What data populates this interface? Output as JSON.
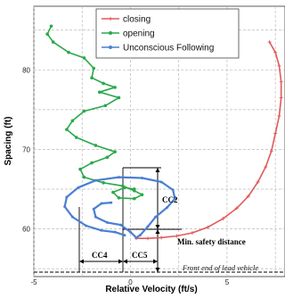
{
  "chart_data": {
    "type": "line",
    "xlabel": "Relative Velocity (ft/s)",
    "ylabel": "Spacing (ft)",
    "xlim": [
      -5,
      8
    ],
    "ylim": [
      54,
      88
    ],
    "x_ticks": [
      "-5",
      "0",
      "5"
    ],
    "y_ticks": [
      "60",
      "70",
      "80"
    ],
    "grid": "dashed",
    "legend_position": "top-right",
    "series": [
      {
        "name": "closing",
        "color": "#e05a5a",
        "marker": "plus",
        "points": [
          [
            7.2,
            83.5
          ],
          [
            7.5,
            82.2
          ],
          [
            7.7,
            80.5
          ],
          [
            7.8,
            78.5
          ],
          [
            7.8,
            76.5
          ],
          [
            7.7,
            74.2
          ],
          [
            7.5,
            72.0
          ],
          [
            7.3,
            69.8
          ],
          [
            7.0,
            67.8
          ],
          [
            6.6,
            65.9
          ],
          [
            6.1,
            64.1
          ],
          [
            5.5,
            62.6
          ],
          [
            4.8,
            61.3
          ],
          [
            4.0,
            60.2
          ],
          [
            3.2,
            59.5
          ],
          [
            2.4,
            59.1
          ],
          [
            1.6,
            58.9
          ],
          [
            0.9,
            58.8
          ],
          [
            0.3,
            58.8
          ]
        ]
      },
      {
        "name": "opening",
        "color": "#2aa84a",
        "marker": "circle",
        "points": [
          [
            -4.1,
            85.5
          ],
          [
            -4.3,
            84.5
          ],
          [
            -4.0,
            83.5
          ],
          [
            -3.2,
            82.2
          ],
          [
            -2.4,
            81.5
          ],
          [
            -1.9,
            80.2
          ],
          [
            -2.0,
            79.0
          ],
          [
            -1.4,
            78.3
          ],
          [
            -0.8,
            77.8
          ],
          [
            -1.6,
            77.2
          ],
          [
            -0.6,
            76.5
          ],
          [
            -1.3,
            75.5
          ],
          [
            -2.4,
            74.8
          ],
          [
            -3.0,
            73.6
          ],
          [
            -3.3,
            72.5
          ],
          [
            -2.8,
            71.5
          ],
          [
            -1.8,
            70.5
          ],
          [
            -0.8,
            69.7
          ],
          [
            -1.2,
            69.0
          ],
          [
            -2.0,
            68.3
          ],
          [
            -2.6,
            67.5
          ],
          [
            -2.4,
            66.5
          ],
          [
            -1.4,
            65.8
          ],
          [
            -0.4,
            65.4
          ],
          [
            0.2,
            64.8
          ],
          [
            0.6,
            64.3
          ],
          [
            0.2,
            63.8
          ],
          [
            -0.6,
            63.9
          ],
          [
            -0.9,
            64.6
          ],
          [
            -0.3,
            65.2
          ],
          [
            0.2,
            65.0
          ]
        ]
      },
      {
        "name": "Unconscious Following",
        "color": "#4a7fd4",
        "marker": "dot",
        "points": [
          [
            -1.0,
            63.3
          ],
          [
            -1.5,
            63.2
          ],
          [
            -1.9,
            62.5
          ],
          [
            -1.8,
            61.5
          ],
          [
            -1.2,
            60.8
          ],
          [
            -0.5,
            60.5
          ],
          [
            0.0,
            59.6
          ],
          [
            0.3,
            58.9
          ],
          [
            0.5,
            59.2
          ],
          [
            0.9,
            60.3
          ],
          [
            1.3,
            61.5
          ],
          [
            1.9,
            62.7
          ],
          [
            2.3,
            63.8
          ],
          [
            2.2,
            64.9
          ],
          [
            1.6,
            65.9
          ],
          [
            0.6,
            66.4
          ],
          [
            -0.6,
            66.5
          ],
          [
            -1.8,
            66.1
          ],
          [
            -2.7,
            65.2
          ],
          [
            -3.3,
            64.0
          ],
          [
            -3.4,
            62.8
          ],
          [
            -3.0,
            61.5
          ],
          [
            -2.3,
            60.4
          ],
          [
            -1.5,
            59.8
          ],
          [
            -0.8,
            59.6
          ],
          [
            -0.3,
            59.2
          ]
        ]
      }
    ],
    "annotations": [
      {
        "id": "cc2",
        "text": "CC2"
      },
      {
        "id": "min_safety",
        "text": "Min. safety distance"
      },
      {
        "id": "cc4",
        "text": "CC4"
      },
      {
        "id": "cc5",
        "text": "CC5"
      },
      {
        "id": "front_end",
        "text": "Front end of lead vehicle"
      }
    ]
  }
}
